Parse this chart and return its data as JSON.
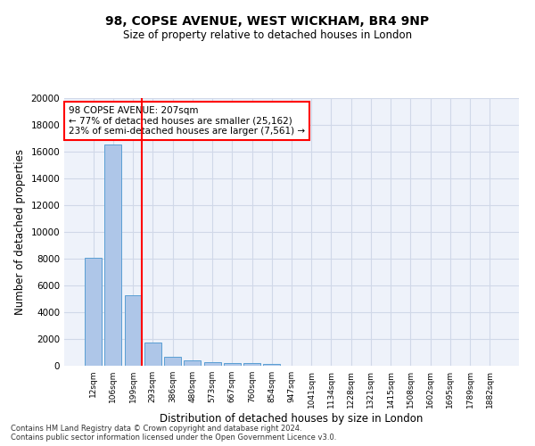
{
  "title_line1": "98, COPSE AVENUE, WEST WICKHAM, BR4 9NP",
  "title_line2": "Size of property relative to detached houses in London",
  "xlabel": "Distribution of detached houses by size in London",
  "ylabel": "Number of detached properties",
  "bar_color": "#aec6e8",
  "bar_edge_color": "#5a9fd4",
  "categories": [
    "12sqm",
    "106sqm",
    "199sqm",
    "293sqm",
    "386sqm",
    "480sqm",
    "573sqm",
    "667sqm",
    "760sqm",
    "854sqm",
    "947sqm",
    "1041sqm",
    "1134sqm",
    "1228sqm",
    "1321sqm",
    "1415sqm",
    "1508sqm",
    "1602sqm",
    "1695sqm",
    "1789sqm",
    "1882sqm"
  ],
  "values": [
    8100,
    16500,
    5300,
    1750,
    700,
    380,
    280,
    220,
    185,
    160,
    0,
    0,
    0,
    0,
    0,
    0,
    0,
    0,
    0,
    0,
    0
  ],
  "ylim": [
    0,
    20000
  ],
  "yticks": [
    0,
    2000,
    4000,
    6000,
    8000,
    10000,
    12000,
    14000,
    16000,
    18000,
    20000
  ],
  "red_line_bar_index": 2,
  "annotation_text_line1": "98 COPSE AVENUE: 207sqm",
  "annotation_text_line2": "← 77% of detached houses are smaller (25,162)",
  "annotation_text_line3": "23% of semi-detached houses are larger (7,561) →",
  "annotation_box_color": "white",
  "annotation_border_color": "red",
  "grid_color": "#d0d8e8",
  "background_color": "#eef2fa",
  "footer_line1": "Contains HM Land Registry data © Crown copyright and database right 2024.",
  "footer_line2": "Contains public sector information licensed under the Open Government Licence v3.0."
}
